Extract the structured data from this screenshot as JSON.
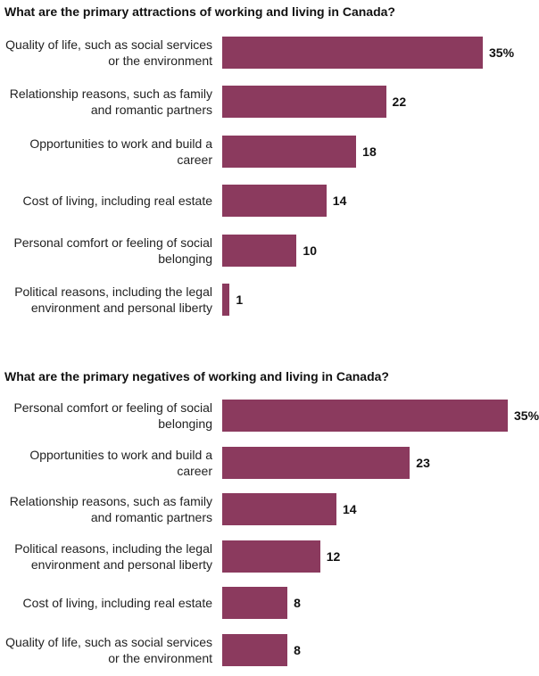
{
  "chart_data": [
    {
      "type": "bar",
      "title": "What are the primary attractions of working and living in Canada?",
      "categories": [
        "Quality of life, such as social services or the environment",
        "Relationship reasons, such as family and romantic partners",
        "Opportunities to work and build a career",
        "Cost of living, including real estate",
        "Personal comfort or feeling of social belonging",
        "Political reasons, including the legal environment and personal liberty"
      ],
      "values": [
        35,
        22,
        18,
        14,
        10,
        1
      ],
      "value_labels": [
        "35%",
        "22",
        "18",
        "14",
        "10",
        "1"
      ],
      "color": "#8b3a5e"
    },
    {
      "type": "bar",
      "title": "What are the primary negatives of working and living in Canada?",
      "categories": [
        "Personal comfort or feeling of social belonging",
        "Opportunities to work and build a career",
        "Relationship reasons, such as family and romantic partners",
        "Political reasons, including the legal environment and personal liberty",
        "Cost of living, including real estate",
        "Quality of life, such as social services or the environment"
      ],
      "values": [
        35,
        23,
        14,
        12,
        8,
        8
      ],
      "value_labels": [
        "35%",
        "23",
        "14",
        "12",
        "8",
        "8"
      ],
      "color": "#8b3a5e"
    }
  ]
}
